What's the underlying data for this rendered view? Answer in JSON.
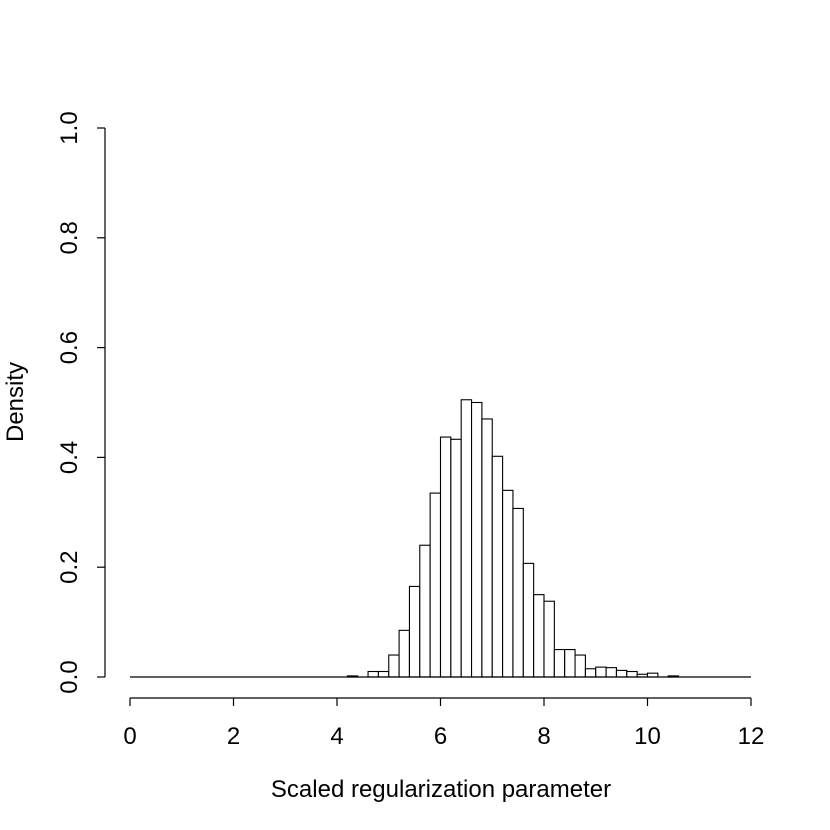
{
  "chart_data": {
    "type": "bar",
    "subtype": "histogram",
    "title": "",
    "xlabel": "Scaled regularization parameter",
    "ylabel": "Density",
    "xlim": [
      0,
      12
    ],
    "ylim": [
      0,
      1.0
    ],
    "x_ticks": [
      0,
      2,
      4,
      6,
      8,
      10,
      12
    ],
    "x_tick_labels": [
      "0",
      "2",
      "4",
      "6",
      "8",
      "10",
      "12"
    ],
    "y_ticks": [
      0,
      0.2,
      0.4,
      0.6,
      0.8,
      1.0
    ],
    "y_tick_labels": [
      "0.0",
      "0.2",
      "0.4",
      "0.6",
      "0.8",
      "1.0"
    ],
    "grid": false,
    "legend": "none",
    "bin_width": 0.2,
    "bins_start": 0,
    "bins": [
      {
        "x0": 4.2,
        "x1": 4.4,
        "density": 0.002
      },
      {
        "x0": 4.4,
        "x1": 4.6,
        "density": 0.0
      },
      {
        "x0": 4.6,
        "x1": 4.8,
        "density": 0.01
      },
      {
        "x0": 4.8,
        "x1": 5.0,
        "density": 0.01
      },
      {
        "x0": 5.0,
        "x1": 5.2,
        "density": 0.04
      },
      {
        "x0": 5.2,
        "x1": 5.4,
        "density": 0.085
      },
      {
        "x0": 5.4,
        "x1": 5.6,
        "density": 0.165
      },
      {
        "x0": 5.6,
        "x1": 5.8,
        "density": 0.24
      },
      {
        "x0": 5.8,
        "x1": 6.0,
        "density": 0.335
      },
      {
        "x0": 6.0,
        "x1": 6.2,
        "density": 0.437
      },
      {
        "x0": 6.2,
        "x1": 6.4,
        "density": 0.433
      },
      {
        "x0": 6.4,
        "x1": 6.6,
        "density": 0.505
      },
      {
        "x0": 6.6,
        "x1": 6.8,
        "density": 0.5
      },
      {
        "x0": 6.8,
        "x1": 7.0,
        "density": 0.47
      },
      {
        "x0": 7.0,
        "x1": 7.2,
        "density": 0.402
      },
      {
        "x0": 7.2,
        "x1": 7.4,
        "density": 0.34
      },
      {
        "x0": 7.4,
        "x1": 7.6,
        "density": 0.307
      },
      {
        "x0": 7.6,
        "x1": 7.8,
        "density": 0.207
      },
      {
        "x0": 7.8,
        "x1": 8.0,
        "density": 0.15
      },
      {
        "x0": 8.0,
        "x1": 8.2,
        "density": 0.138
      },
      {
        "x0": 8.2,
        "x1": 8.4,
        "density": 0.05
      },
      {
        "x0": 8.4,
        "x1": 8.6,
        "density": 0.05
      },
      {
        "x0": 8.6,
        "x1": 8.8,
        "density": 0.04
      },
      {
        "x0": 8.8,
        "x1": 9.0,
        "density": 0.015
      },
      {
        "x0": 9.0,
        "x1": 9.2,
        "density": 0.018
      },
      {
        "x0": 9.2,
        "x1": 9.4,
        "density": 0.017
      },
      {
        "x0": 9.4,
        "x1": 9.6,
        "density": 0.012
      },
      {
        "x0": 9.6,
        "x1": 9.8,
        "density": 0.01
      },
      {
        "x0": 9.8,
        "x1": 10.0,
        "density": 0.005
      },
      {
        "x0": 10.0,
        "x1": 10.2,
        "density": 0.007
      },
      {
        "x0": 10.2,
        "x1": 10.4,
        "density": 0.0
      },
      {
        "x0": 10.4,
        "x1": 10.6,
        "density": 0.002
      }
    ]
  }
}
